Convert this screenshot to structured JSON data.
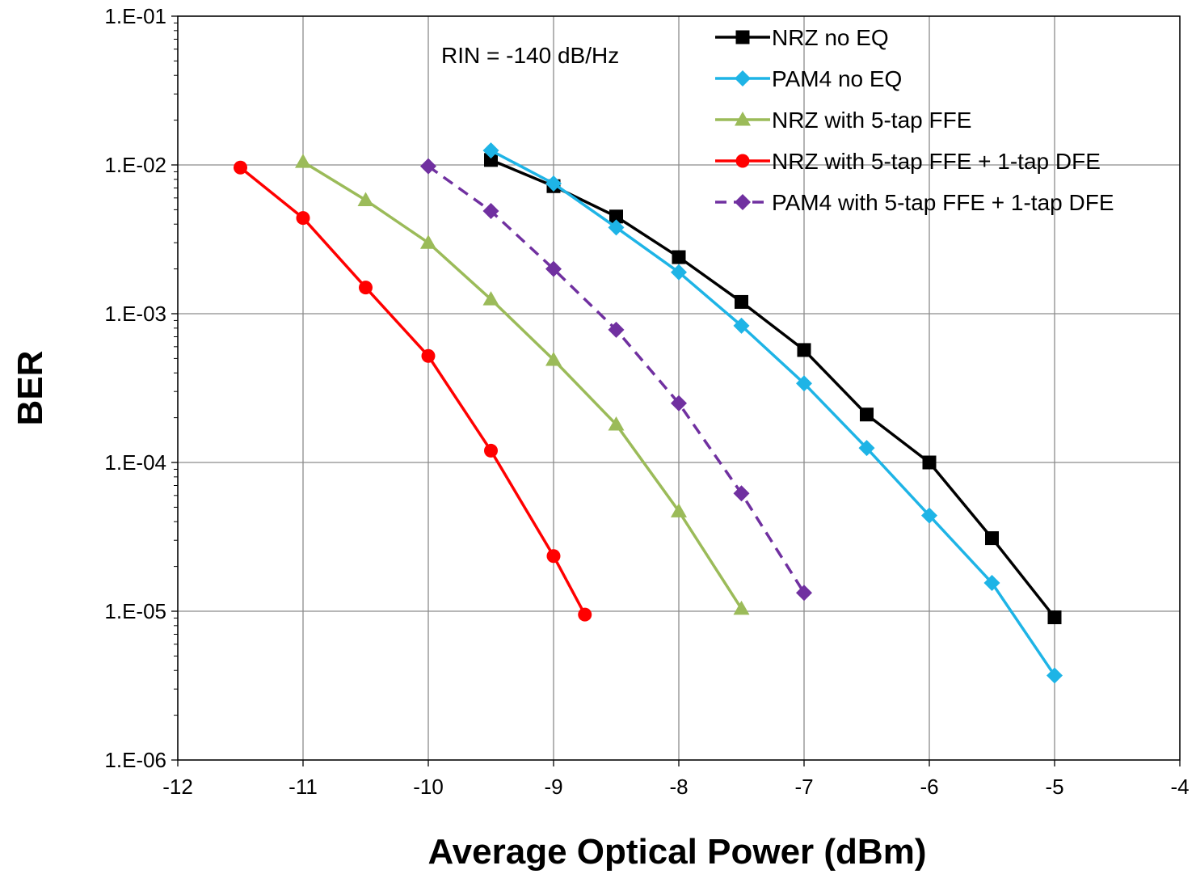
{
  "chart_data": {
    "type": "line",
    "title": "",
    "xlabel": "Average Optical Power (dBm)",
    "ylabel": "BER",
    "xlim": [
      -12,
      -4
    ],
    "ylim": [
      1e-06,
      0.1
    ],
    "yscale": "log",
    "grid": true,
    "legend_position": "top-right",
    "x_ticks": [
      "-12",
      "-11",
      "-10",
      "-9",
      "-8",
      "-7",
      "-6",
      "-5",
      "-4"
    ],
    "x_tick_values": [
      -12,
      -11,
      -10,
      -9,
      -8,
      -7,
      -6,
      -5,
      -4
    ],
    "y_ticks": [
      "1.E-01",
      "1.E-02",
      "1.E-03",
      "1.E-04",
      "1.E-05",
      "1.E-06"
    ],
    "y_tick_values": [
      0.1,
      0.01,
      0.001,
      0.0001,
      1e-05,
      1e-06
    ],
    "annotation": "RIN = -140 dB/Hz",
    "series": [
      {
        "name": "NRZ no EQ",
        "color": "#000000",
        "marker": "square",
        "dashed": false,
        "x": [
          -9.5,
          -9.0,
          -8.5,
          -8.0,
          -7.5,
          -7.0,
          -6.5,
          -6.0,
          -5.5,
          -5.0
        ],
        "y": [
          0.0108,
          0.0072,
          0.0045,
          0.0024,
          0.0012,
          0.00057,
          0.00021,
          0.0001,
          3.1e-05,
          9.1e-06
        ]
      },
      {
        "name": "PAM4 no EQ",
        "color": "#1EB4E6",
        "marker": "diamond",
        "dashed": false,
        "x": [
          -9.5,
          -9.0,
          -8.5,
          -8.0,
          -7.5,
          -7.0,
          -6.5,
          -6.0,
          -5.5,
          -5.0
        ],
        "y": [
          0.0125,
          0.0075,
          0.0038,
          0.0019,
          0.00083,
          0.00034,
          0.000125,
          4.4e-05,
          1.55e-05,
          3.7e-06
        ]
      },
      {
        "name": "NRZ with 5-tap FFE",
        "color": "#9BBB59",
        "marker": "triangle",
        "dashed": false,
        "x": [
          -11.0,
          -10.5,
          -10.0,
          -9.5,
          -9.0,
          -8.5,
          -8.0,
          -7.5
        ],
        "y": [
          0.0105,
          0.0058,
          0.003,
          0.00125,
          0.00049,
          0.00018,
          4.7e-05,
          1.04e-05
        ]
      },
      {
        "name": "NRZ with 5-tap FFE + 1-tap DFE",
        "color": "#FF0000",
        "marker": "circle",
        "dashed": false,
        "x": [
          -11.5,
          -11.0,
          -10.5,
          -10.0,
          -9.5,
          -9.0,
          -8.75
        ],
        "y": [
          0.0096,
          0.0044,
          0.0015,
          0.00052,
          0.00012,
          2.35e-05,
          9.5e-06
        ]
      },
      {
        "name": "PAM4 with 5-tap FFE + 1-tap DFE",
        "color": "#7030A0",
        "marker": "diamond",
        "dashed": true,
        "x": [
          -10.0,
          -9.5,
          -9.0,
          -8.5,
          -8.0,
          -7.5,
          -7.0
        ],
        "y": [
          0.0098,
          0.0049,
          0.002,
          0.00078,
          0.00025,
          6.2e-05,
          1.33e-05
        ]
      }
    ]
  }
}
